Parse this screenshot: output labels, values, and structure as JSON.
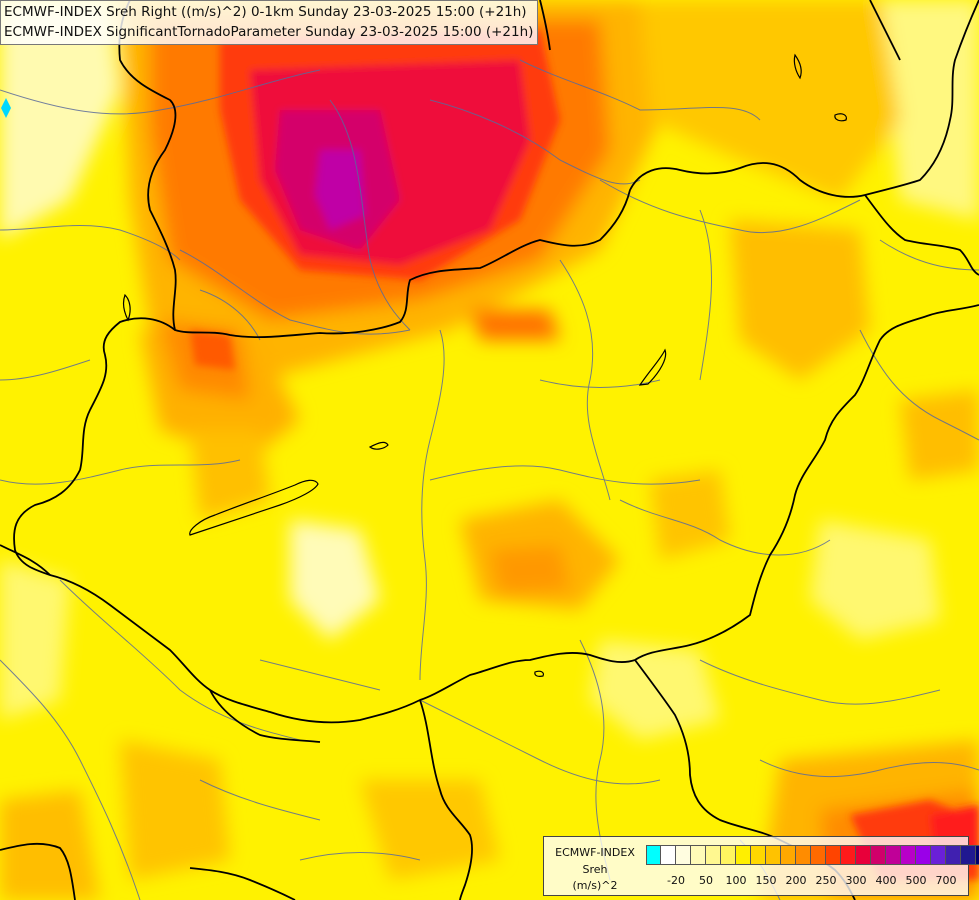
{
  "header": {
    "line1": "ECMWF-INDEX Sreh Right ((m/s)^2) 0-1km Sunday 23-03-2025 15:00 (+21h)",
    "line2": "ECMWF-INDEX SignificantTornadoParameter Sunday 23-03-2025 15:00 (+21h)"
  },
  "legend": {
    "product": "ECMWF-INDEX",
    "variable": "Sreh",
    "unit": "(m/s)^2",
    "colors": [
      "#00ffff",
      "#ffffff",
      "#fffde0",
      "#fffbb8",
      "#fff890",
      "#fff560",
      "#ffef00",
      "#ffd800",
      "#ffc200",
      "#ffa800",
      "#ff8c00",
      "#ff6a00",
      "#ff4400",
      "#ff1a1a",
      "#e8003a",
      "#d0006a",
      "#c00098",
      "#b800c8",
      "#9a00e8",
      "#6a20d8",
      "#4020b0",
      "#201890",
      "#000070"
    ],
    "ticks": [
      {
        "label": "-20",
        "index": 1
      },
      {
        "label": "50",
        "index": 3
      },
      {
        "label": "100",
        "index": 5
      },
      {
        "label": "150",
        "index": 7
      },
      {
        "label": "200",
        "index": 9
      },
      {
        "label": "250",
        "index": 11
      },
      {
        "label": "300",
        "index": 13
      },
      {
        "label": "400",
        "index": 15
      },
      {
        "label": "500",
        "index": 17
      },
      {
        "label": "700",
        "index": 19
      }
    ]
  }
}
